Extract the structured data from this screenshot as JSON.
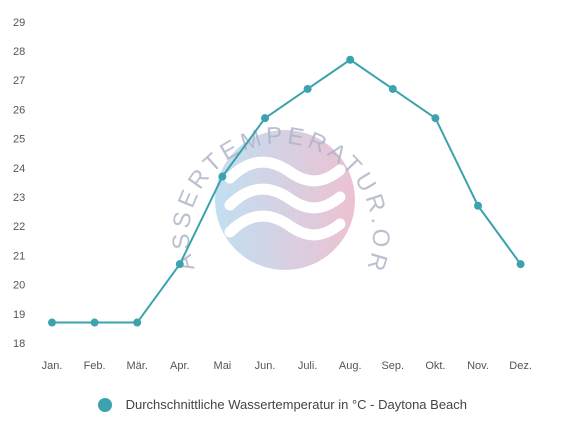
{
  "chart_data": {
    "type": "line",
    "categories": [
      "Jan.",
      "Feb.",
      "Mär.",
      "Apr.",
      "Mai",
      "Jun.",
      "Juli.",
      "Aug.",
      "Sep.",
      "Okt.",
      "Nov.",
      "Dez."
    ],
    "series": [
      {
        "name": "Durchschnittliche Wassertemperatur in °C - Daytona Beach",
        "values": [
          18.7,
          18.7,
          18.7,
          20.7,
          23.7,
          25.7,
          26.7,
          27.7,
          26.7,
          25.7,
          22.7,
          20.7
        ]
      }
    ],
    "yticks": [
      18,
      19,
      20,
      21,
      22,
      23,
      24,
      25,
      26,
      27,
      28,
      29
    ],
    "ylim": [
      18,
      29
    ],
    "grid": false,
    "legend_position": "bottom",
    "title": "",
    "xlabel": "",
    "ylabel": ""
  },
  "watermark": {
    "text": "WASSERTEMPERATUR.ORG",
    "colors": [
      "#b3d8ee",
      "#e8b3c8"
    ]
  },
  "colors": {
    "line": "#3ba3ad",
    "tick_text": "#555555"
  }
}
